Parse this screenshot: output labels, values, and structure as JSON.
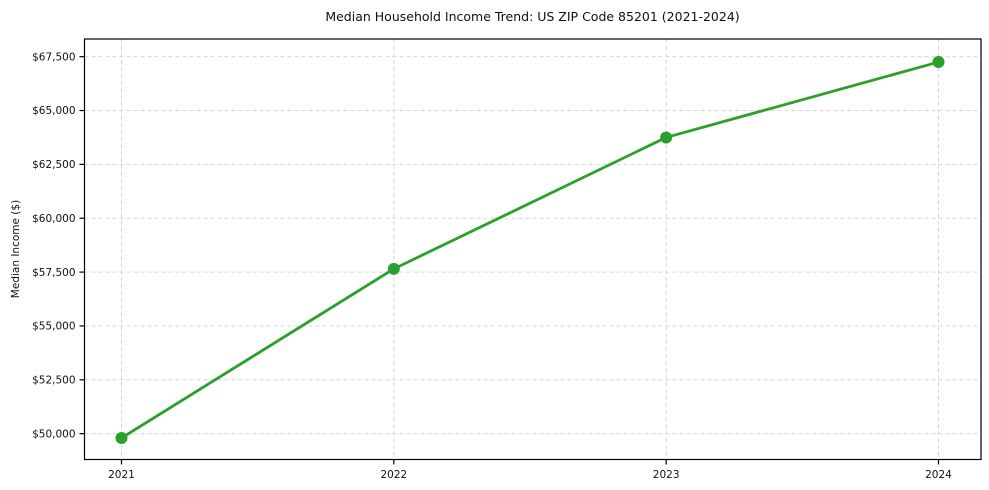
{
  "chart_data": {
    "type": "line",
    "title": "Median Household Income Trend: US ZIP Code 85201 (2021-2024)",
    "ylabel": "Median Income ($)",
    "xlabel": "",
    "x": [
      "2021",
      "2022",
      "2023",
      "2024"
    ],
    "series": [
      {
        "name": "median-household-income",
        "values": [
          49800,
          57650,
          63750,
          67250
        ],
        "color": "#2ca02c",
        "marker": "circle",
        "marker_radius": 6,
        "line_width": 2.8
      }
    ],
    "yticks": [
      50000,
      52500,
      55000,
      57500,
      60000,
      62500,
      65000,
      67500
    ],
    "ytick_labels": [
      "$50,000",
      "$52,500",
      "$55,000",
      "$57,500",
      "$60,000",
      "$62,500",
      "$65,000",
      "$67,500"
    ],
    "ylim": [
      48800,
      68320
    ],
    "grid": true,
    "grid_style": "dashed",
    "legend": "none",
    "background": "#ffffff",
    "spine_color": "#000000"
  }
}
